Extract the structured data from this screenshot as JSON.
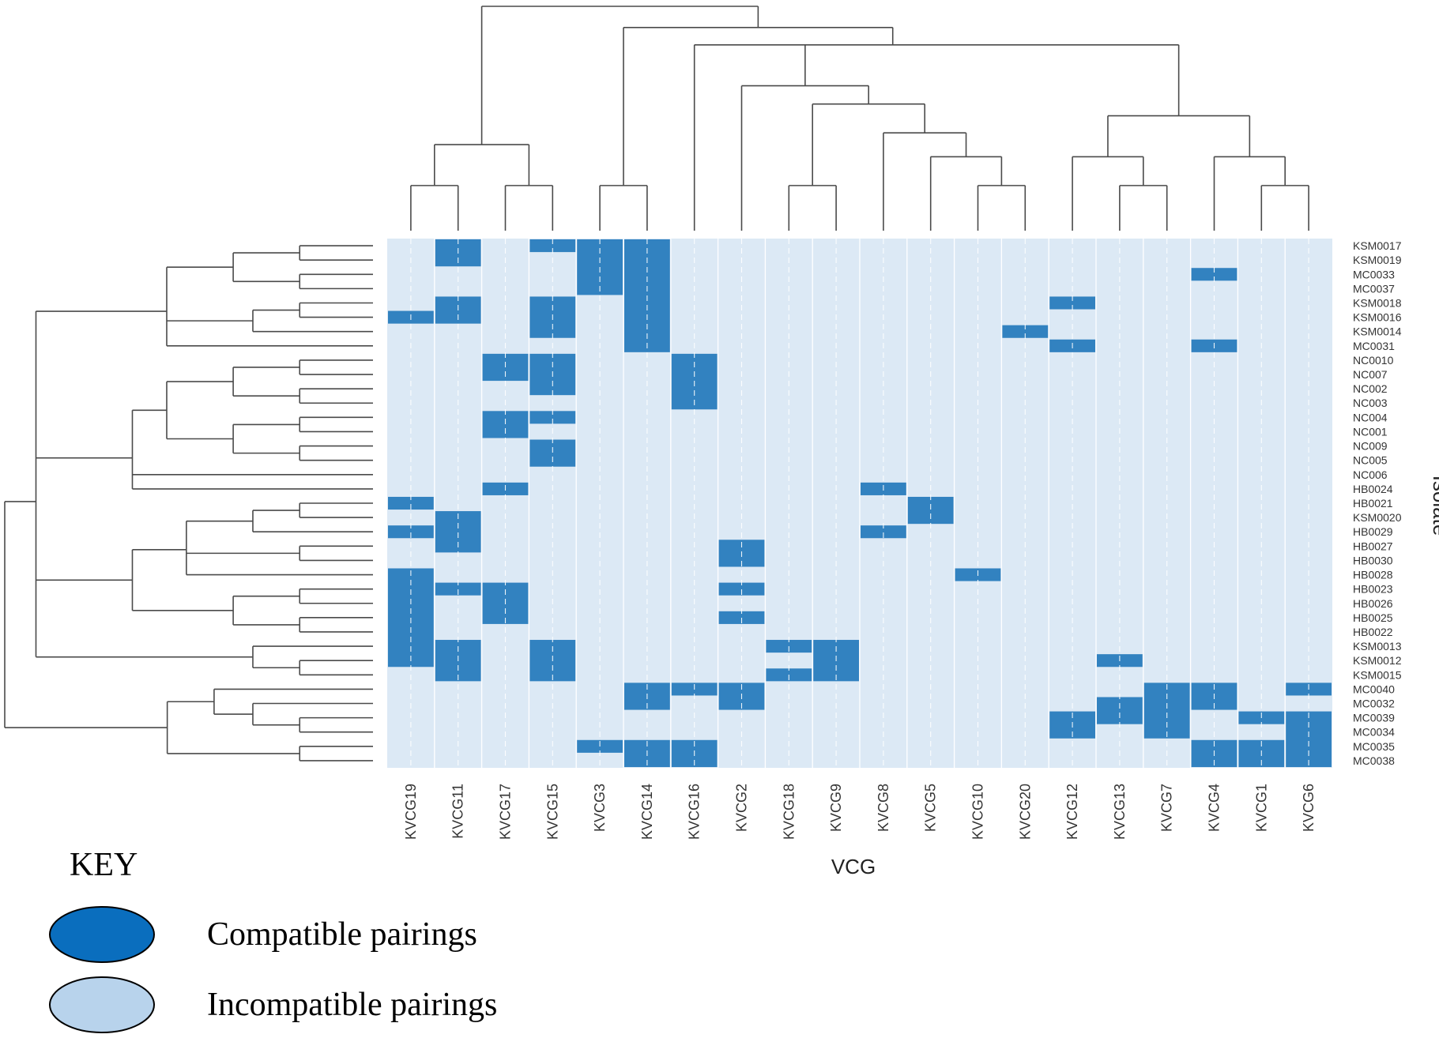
{
  "chart_data": {
    "type": "heatmap",
    "title": "",
    "xlabel": "VCG",
    "ylabel": "Isolate",
    "columns": [
      "KVCG19",
      "KVCG11",
      "KVCG17",
      "KVCG15",
      "KVCG3",
      "KVCG14",
      "KVCG16",
      "KVCG2",
      "KVCG18",
      "KVCG9",
      "KVCG8",
      "KVCG5",
      "KVCG10",
      "KVCG20",
      "KVCG12",
      "KVCG13",
      "KVCG7",
      "KVCG4",
      "KVCG1",
      "KVCG6"
    ],
    "rows": [
      "KSM0017",
      "KSM0019",
      "MC0033",
      "MC0037",
      "KSM0018",
      "KSM0016",
      "KSM0014",
      "MC0031",
      "NC0010",
      "NC007",
      "NC002",
      "NC003",
      "NC004",
      "NC001",
      "NC009",
      "NC005",
      "NC006",
      "HB0024",
      "HB0021",
      "KSM0020",
      "HB0029",
      "HB0027",
      "HB0030",
      "HB0028",
      "HB0023",
      "HB0026",
      "HB0025",
      "HB0022",
      "KSM0013",
      "KSM0012",
      "KSM0015",
      "MC0040",
      "MC0032",
      "MC0039",
      "MC0034",
      "MC0035",
      "MC0038"
    ],
    "values_legend": {
      "1": "Compatible pairings",
      "0": "Incompatible pairings"
    },
    "compatible_pairs": {
      "KVCG19": [
        "KSM0016",
        "HB0021",
        "HB0029",
        "HB0028",
        "HB0023",
        "HB0026",
        "HB0025",
        "HB0022",
        "KSM0013",
        "KSM0012"
      ],
      "KVCG11": [
        "KSM0017",
        "KSM0019",
        "KSM0018",
        "KSM0016",
        "KSM0020",
        "HB0029",
        "HB0027",
        "HB0023",
        "KSM0013",
        "KSM0012",
        "KSM0015"
      ],
      "KVCG17": [
        "NC0010",
        "NC007",
        "NC004",
        "NC001",
        "HB0024",
        "HB0023",
        "HB0026",
        "HB0025"
      ],
      "KVCG15": [
        "KSM0017",
        "KSM0018",
        "KSM0016",
        "KSM0014",
        "NC0010",
        "NC007",
        "NC002",
        "NC004",
        "NC009",
        "NC005",
        "KSM0013",
        "KSM0012",
        "KSM0015"
      ],
      "KVCG3": [
        "KSM0017",
        "KSM0019",
        "MC0033",
        "MC0037",
        "MC0035"
      ],
      "KVCG14": [
        "KSM0017",
        "KSM0019",
        "MC0033",
        "MC0037",
        "KSM0018",
        "KSM0016",
        "KSM0014",
        "MC0031",
        "MC0040",
        "MC0032",
        "MC0035",
        "MC0038"
      ],
      "KVCG16": [
        "NC0010",
        "NC007",
        "NC002",
        "NC003",
        "MC0040",
        "MC0035",
        "MC0038"
      ],
      "KVCG2": [
        "HB0027",
        "HB0030",
        "HB0023",
        "HB0025",
        "MC0040",
        "MC0032"
      ],
      "KVCG18": [
        "KSM0013",
        "KSM0015"
      ],
      "KVCG9": [
        "KSM0013",
        "KSM0012",
        "KSM0015"
      ],
      "KVCG8": [
        "HB0024",
        "HB0029"
      ],
      "KVCG5": [
        "HB0021",
        "KSM0020"
      ],
      "KVCG10": [
        "HB0028"
      ],
      "KVCG20": [
        "KSM0014"
      ],
      "KVCG12": [
        "KSM0018",
        "MC0031",
        "MC0039",
        "MC0034"
      ],
      "KVCG13": [
        "KSM0012",
        "MC0032",
        "MC0039"
      ],
      "KVCG7": [
        "MC0040",
        "MC0032",
        "MC0039",
        "MC0034"
      ],
      "KVCG4": [
        "MC0033",
        "MC0031",
        "MC0040",
        "MC0032",
        "MC0035",
        "MC0038"
      ],
      "KVCG1": [
        "MC0039",
        "MC0035",
        "MC0038"
      ],
      "KVCG6": [
        "MC0040",
        "MC0039",
        "MC0034",
        "MC0035",
        "MC0038"
      ]
    },
    "colors": {
      "compatible": "#3282c0",
      "incompatible": "#dce9f5",
      "key_compatible": "#0a6ebe",
      "key_incompatible": "#b8d3ec",
      "dendrogram": "#4a4a4a"
    },
    "column_dendrogram": "((KVCG19,KVCG11),(KVCG17,KVCG15)),((KVCG3,KVCG14),(KVCG16,(KVCG2,((KVCG18,KVCG9),(KVCG8,(KVCG5,(KVCG10,KVCG20))))),((KVCG12,(KVCG13,KVCG7)),(KVCG4,(KVCG1,KVCG6)))))",
    "row_dendrogram": "(((((KSM0017,KSM0019),(MC0033,MC0037)),((KSM0018,KSM0016),KSM0014),MC0031),((((NC0010,NC007),(NC002,NC003)),((NC004,NC001),(NC009,NC005))),NC006,HB0024),((((HB0021,KSM0020),HB0029),(HB0027,HB0030),HB0028),((HB0023,HB0026),(HB0025,HB0022))),(KSM0013,(KSM0012,KSM0015))),((MC0040,(MC0032,(MC0039,MC0034))),(MC0035,MC0038)))"
  },
  "key": {
    "title": "KEY",
    "items": [
      {
        "label": "Compatible pairings",
        "color": "#0a6ebe"
      },
      {
        "label": "Incompatible pairings",
        "color": "#b8d3ec"
      }
    ]
  }
}
